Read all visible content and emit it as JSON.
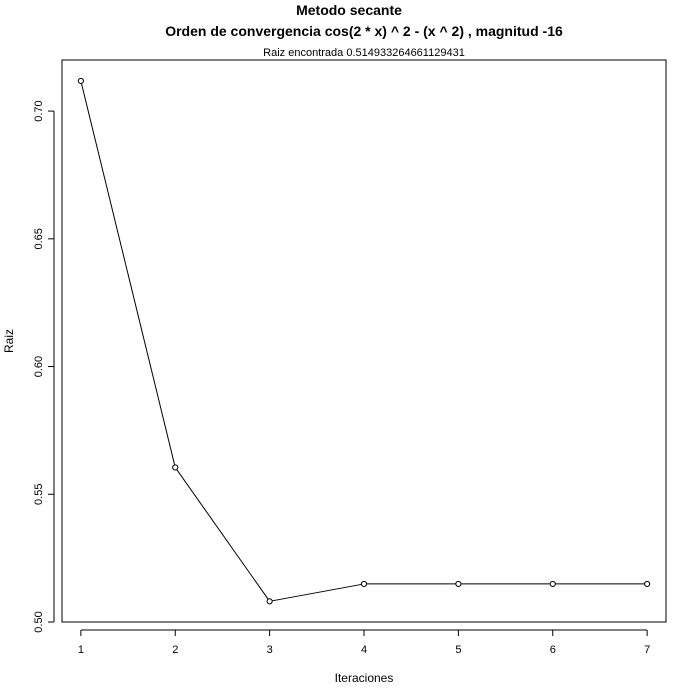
{
  "chart_data": {
    "type": "line",
    "title": "Metodo secante",
    "title_line2": "Orden de convergencia cos(2 * x) ^ 2 - (x ^ 2) , magnitud -16",
    "subtitle": "Raiz encontrada 0.514933264661129431",
    "xlabel": "Iteraciones",
    "ylabel": "Raiz",
    "x": [
      1,
      2,
      3,
      4,
      5,
      6,
      7
    ],
    "values": [
      0.7118,
      0.5605,
      0.5081,
      0.5149,
      0.5149,
      0.5149,
      0.5149
    ],
    "xlim": [
      0.8,
      7.2
    ],
    "ylim": [
      0.5,
      0.72
    ],
    "x_ticks": [
      "1",
      "2",
      "3",
      "4",
      "5",
      "6",
      "7"
    ],
    "y_ticks": [
      "0.50",
      "0.55",
      "0.60",
      "0.65",
      "0.70"
    ],
    "marker": "open-circle",
    "grid": false,
    "color": "#000000"
  }
}
